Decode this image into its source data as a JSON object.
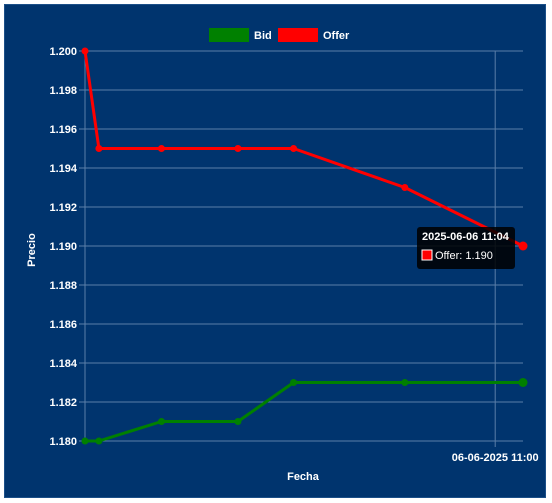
{
  "chart_data": {
    "type": "line",
    "title": "",
    "xlabel": "Fecha",
    "ylabel": "Precio",
    "ylim": [
      1.18,
      1.2
    ],
    "yticks": [
      "1.180",
      "1.182",
      "1.184",
      "1.186",
      "1.188",
      "1.190",
      "1.192",
      "1.194",
      "1.196",
      "1.198",
      "1.200"
    ],
    "xticks": [
      {
        "label": "06-06-2025 11:00",
        "x": "2025-06-06 11:00"
      }
    ],
    "x": [
      "2025-06-06 10:01",
      "2025-06-06 10:03",
      "2025-06-06 10:12",
      "2025-06-06 10:23",
      "2025-06-06 10:31",
      "2025-06-06 10:47",
      "2025-06-06 11:04"
    ],
    "series": [
      {
        "name": "Bid",
        "color": "#008000",
        "values": [
          1.18,
          1.18,
          1.181,
          1.181,
          1.183,
          1.183,
          1.183
        ]
      },
      {
        "name": "Offer",
        "color": "#ff0000",
        "values": [
          1.2,
          1.195,
          1.195,
          1.195,
          1.195,
          1.193,
          1.19
        ]
      }
    ],
    "legend_position": "top",
    "grid": true,
    "tooltip": {
      "title": "2025-06-06 11:04",
      "series": "Offer",
      "label": "Offer: 1.190"
    },
    "background": "#00346e",
    "grid_color": "#5a7ea8"
  }
}
